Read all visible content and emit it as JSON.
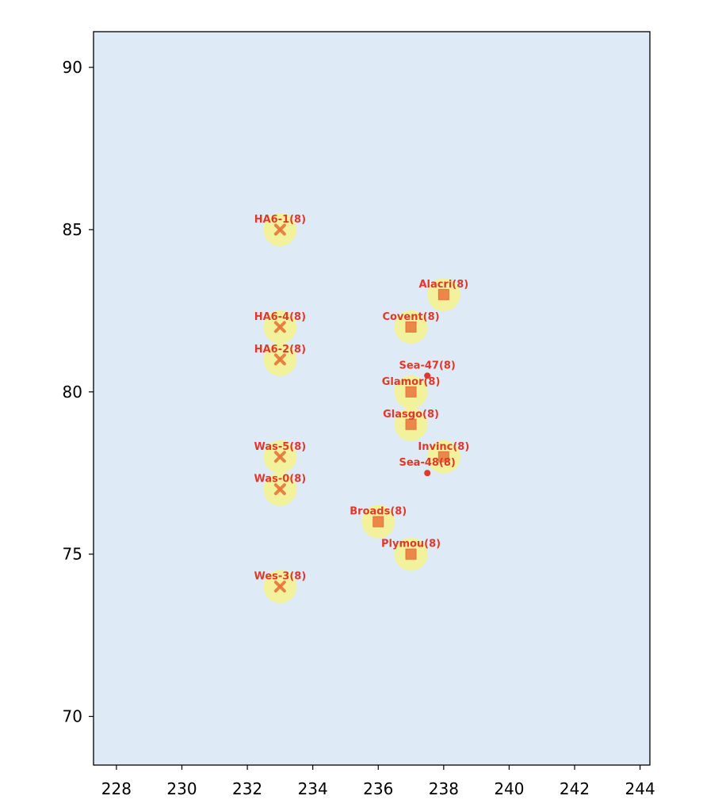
{
  "chart_data": {
    "type": "scatter",
    "title": "",
    "xlabel": "",
    "ylabel": "",
    "xlim": [
      227.3,
      244.3
    ],
    "ylim": [
      68.5,
      91.1
    ],
    "x_ticks": [
      228,
      230,
      232,
      234,
      236,
      238,
      240,
      242,
      244
    ],
    "y_ticks": [
      70,
      75,
      80,
      85,
      90
    ],
    "grid": false,
    "legend": "none",
    "colors": {
      "background": "#deebf7",
      "halo": "#f7f38c",
      "marker": "#e8743b",
      "label": "#e0382b",
      "dot": "#e0382b",
      "axis": "#000000"
    },
    "points": [
      {
        "label": "HA6-1(8)",
        "x": 233,
        "y": 85,
        "marker": "x",
        "halo": true
      },
      {
        "label": "HA6-4(8)",
        "x": 233,
        "y": 82,
        "marker": "x",
        "halo": true
      },
      {
        "label": "HA6-2(8)",
        "x": 233,
        "y": 81,
        "marker": "x",
        "halo": true
      },
      {
        "label": "Was-5(8)",
        "x": 233,
        "y": 78,
        "marker": "x",
        "halo": true
      },
      {
        "label": "Was-0(8)",
        "x": 233,
        "y": 77,
        "marker": "x",
        "halo": true
      },
      {
        "label": "Wes-3(8)",
        "x": 233,
        "y": 74,
        "marker": "x",
        "halo": true
      },
      {
        "label": "Alacri(8)",
        "x": 238,
        "y": 83,
        "marker": "square",
        "halo": true
      },
      {
        "label": "Covent(8)",
        "x": 237,
        "y": 82,
        "marker": "square",
        "halo": true
      },
      {
        "label": "Glamor(8)",
        "x": 237,
        "y": 80,
        "marker": "square",
        "halo": true
      },
      {
        "label": "Glasgo(8)",
        "x": 237,
        "y": 79,
        "marker": "square",
        "halo": true
      },
      {
        "label": "Invinc(8)",
        "x": 238,
        "y": 78,
        "marker": "square",
        "halo": true
      },
      {
        "label": "Broads(8)",
        "x": 236,
        "y": 76,
        "marker": "square",
        "halo": true
      },
      {
        "label": "Plymou(8)",
        "x": 237,
        "y": 75,
        "marker": "square",
        "halo": true
      },
      {
        "label": "Sea-47(8)",
        "x": 237.5,
        "y": 80.5,
        "marker": "dot",
        "halo": false
      },
      {
        "label": "Sea-48(8)",
        "x": 237.5,
        "y": 77.5,
        "marker": "dot",
        "halo": false
      }
    ]
  }
}
